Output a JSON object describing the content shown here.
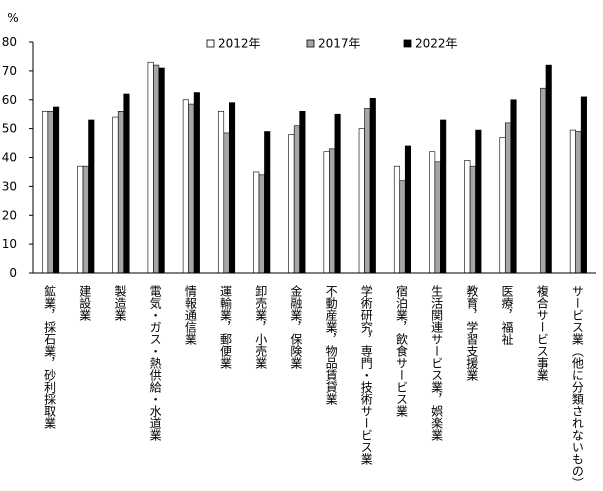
{
  "chart_data": {
    "type": "bar",
    "ylabel": "%",
    "ylim": [
      0,
      80
    ],
    "yticks": [
      0,
      10,
      20,
      30,
      40,
      50,
      60,
      70,
      80
    ],
    "grid": false,
    "legend_position": "top",
    "categories": [
      "鉱業，採石業，砂利採取業",
      "建設業",
      "製造業",
      "電気・ガス・熱供給・水道業",
      "情報通信業",
      "運輸業，郵便業",
      "卸売業，小売業",
      "金融業，保険業",
      "不動産業，物品賃貸業",
      "学術研究，専門・技術サービス業",
      "宿泊業，飲食サービス業",
      "生活関連サービス業，娯楽業",
      "教育，学習支援業",
      "医療，福祉",
      "複合サービス事業",
      "サービス業（他に分類されないもの）"
    ],
    "series": [
      {
        "name": "2012年",
        "color": "#ffffff",
        "values": [
          56,
          37,
          54,
          73,
          60,
          56,
          35,
          48,
          42,
          50,
          37,
          42,
          39,
          47,
          null,
          49.5
        ]
      },
      {
        "name": "2017年",
        "color": "#a6a6a6",
        "values": [
          56,
          37,
          56,
          72,
          58.5,
          48.5,
          34,
          51,
          43,
          57,
          32,
          38.5,
          37,
          52,
          64,
          49
        ]
      },
      {
        "name": "2022年",
        "color": "#000000",
        "values": [
          57.5,
          53,
          62,
          71,
          62.5,
          59,
          49,
          56,
          55,
          60.5,
          44,
          53,
          49.5,
          60,
          72,
          61
        ]
      }
    ]
  }
}
